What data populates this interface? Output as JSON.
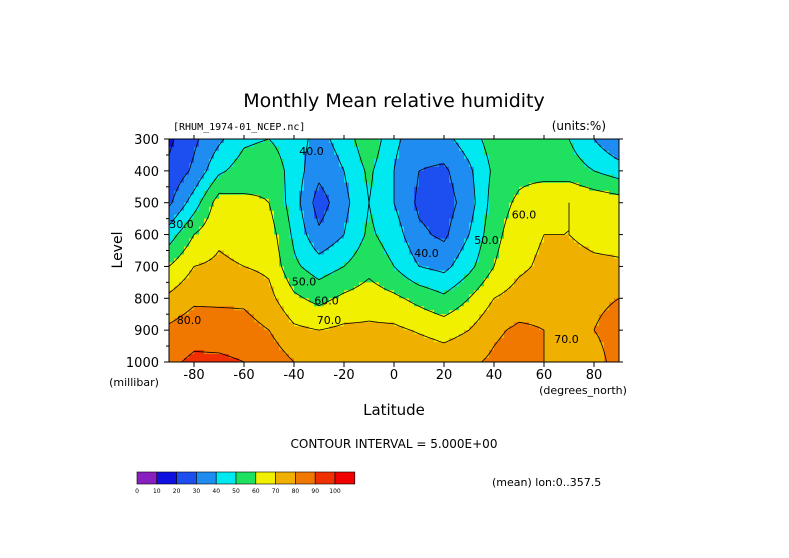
{
  "chart_data": {
    "type": "heatmap",
    "title": "Monthly Mean relative humidity",
    "subtitle_left": "[RHUM_1974-01_NCEP.nc]",
    "subtitle_right": "(units:%)",
    "xlabel": "Latitude",
    "x_unit_label": "(degrees_north)",
    "ylabel": "Level",
    "y_unit_label": "(millibar)",
    "xlim": [
      -90,
      90
    ],
    "ylim": [
      1000,
      300
    ],
    "x_ticks": [
      -80,
      -60,
      -40,
      -20,
      0,
      20,
      40,
      60,
      80
    ],
    "x_tick_labels": [
      "-80",
      "-60",
      "-40",
      "-20",
      "0",
      "20",
      "40",
      "60",
      "80"
    ],
    "y_ticks": [
      300,
      400,
      500,
      600,
      700,
      800,
      900,
      1000
    ],
    "y_tick_labels": [
      "300",
      "400",
      "500",
      "600",
      "700",
      "800",
      "900",
      "1000"
    ],
    "contour_interval_text": "CONTOUR INTERVAL = 5.000E+00",
    "note_text": "(mean) lon:0..357.5",
    "contour_labels": [
      {
        "text": "30.0",
        "lat": -85,
        "level": 580
      },
      {
        "text": "40.0",
        "lat": -33,
        "level": 350
      },
      {
        "text": "50.0",
        "lat": -36,
        "level": 760
      },
      {
        "text": "60.0",
        "lat": -27,
        "level": 820
      },
      {
        "text": "70.0",
        "lat": -26,
        "level": 880
      },
      {
        "text": "80.0",
        "lat": -82,
        "level": 880
      },
      {
        "text": "40.0",
        "lat": 13,
        "level": 670
      },
      {
        "text": "50.0",
        "lat": 37,
        "level": 630
      },
      {
        "text": "60.0",
        "lat": 52,
        "level": 550
      },
      {
        "text": "70.0",
        "lat": 69,
        "level": 940
      }
    ],
    "colorbar": {
      "breaks": [
        "0",
        "10",
        "20",
        "30",
        "40",
        "50",
        "60",
        "70",
        "80",
        "90",
        "100"
      ],
      "colors": [
        "#8a1fc0",
        "#1010e0",
        "#1c4ef0",
        "#1e8cf0",
        "#00e8f0",
        "#20e060",
        "#f0f000",
        "#f0b000",
        "#f07800",
        "#f03000",
        "#f00000"
      ]
    },
    "lats": [
      -90,
      -80,
      -70,
      -60,
      -50,
      -40,
      -30,
      -20,
      -10,
      0,
      10,
      20,
      30,
      40,
      50,
      60,
      70,
      80,
      90
    ],
    "levels": [
      300,
      400,
      500,
      600,
      700,
      800,
      900,
      1000
    ],
    "values": [
      [
        18,
        28,
        38,
        48,
        50,
        44,
        37,
        44,
        58,
        42,
        35,
        37,
        45,
        55,
        55,
        55,
        50,
        40,
        30
      ],
      [
        22,
        32,
        48,
        55,
        58,
        45,
        33,
        40,
        52,
        40,
        30,
        28,
        38,
        52,
        57,
        56,
        55,
        50,
        45
      ],
      [
        28,
        45,
        65,
        62,
        60,
        45,
        25,
        37,
        50,
        40,
        28,
        25,
        35,
        55,
        62,
        68,
        70,
        67,
        65
      ],
      [
        45,
        60,
        68,
        65,
        65,
        48,
        32,
        40,
        52,
        45,
        32,
        28,
        40,
        57,
        66,
        70,
        70,
        66,
        65
      ],
      [
        60,
        70,
        72,
        70,
        68,
        52,
        45,
        50,
        57,
        50,
        40,
        37,
        47,
        60,
        68,
        72,
        75,
        73,
        72
      ],
      [
        72,
        78,
        78,
        78,
        73,
        62,
        57,
        62,
        65,
        62,
        57,
        52,
        60,
        70,
        74,
        76,
        80,
        79,
        80
      ],
      [
        82,
        86,
        85,
        84,
        80,
        72,
        70,
        72,
        72,
        72,
        69,
        66,
        70,
        78,
        82,
        80,
        78,
        80,
        82
      ],
      [
        88,
        92,
        92,
        90,
        86,
        80,
        78,
        80,
        80,
        80,
        78,
        76,
        78,
        82,
        86,
        80,
        75,
        78,
        82
      ]
    ]
  }
}
